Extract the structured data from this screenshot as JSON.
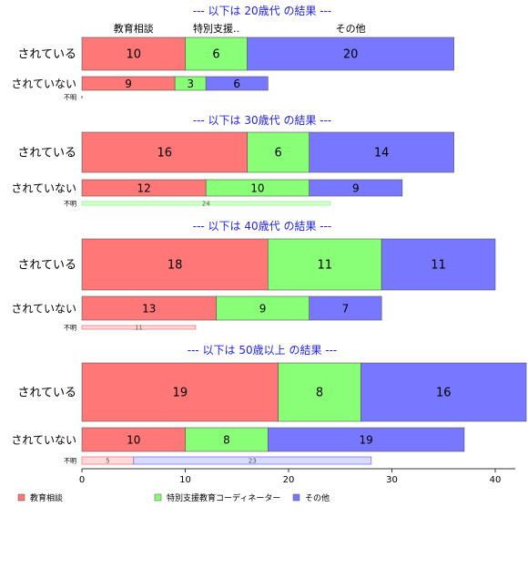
{
  "chart_data": {
    "type": "bar",
    "orientation": "horizontal",
    "stacked": true,
    "xlim": [
      0,
      42
    ],
    "xticks": [
      0,
      10,
      20,
      30,
      40
    ],
    "categories": [
      "されている",
      "されていない",
      "不明"
    ],
    "legend": {
      "placement": "bottom-left",
      "labels": [
        "教育相談",
        "特別支援教育コーディネーター",
        "その他"
      ]
    },
    "colors": [
      "#ff7777",
      "#88ff77",
      "#7777ff"
    ],
    "panels": [
      {
        "title": "--- 以下は 20歳代 の結果 ---",
        "header_labels": [
          "教育相談",
          "特別支援..",
          "その他"
        ],
        "rows": [
          {
            "category": "されている",
            "values": [
              10,
              6,
              20
            ],
            "labels": [
              "10",
              "6",
              "20"
            ]
          },
          {
            "category": "されていない",
            "values": [
              9,
              3,
              6
            ],
            "labels": [
              "9",
              "3",
              "6"
            ]
          },
          {
            "category": "不明",
            "values": [
              0,
              0,
              0
            ],
            "labels": [
              "",
              "",
              ""
            ]
          }
        ]
      },
      {
        "title": "--- 以下は 30歳代 の結果 ---",
        "rows": [
          {
            "category": "されている",
            "values": [
              16,
              6,
              14
            ],
            "labels": [
              "16",
              "6",
              "14"
            ]
          },
          {
            "category": "されていない",
            "values": [
              12,
              10,
              9
            ],
            "labels": [
              "12",
              "10",
              "9"
            ]
          },
          {
            "category": "不明",
            "values": [
              0,
              24,
              0
            ],
            "labels": [
              "",
              "24",
              ""
            ]
          }
        ]
      },
      {
        "title": "--- 以下は 40歳代 の結果 ---",
        "rows": [
          {
            "category": "されている",
            "values": [
              18,
              11,
              11
            ],
            "labels": [
              "18",
              "11",
              "11"
            ]
          },
          {
            "category": "されていない",
            "values": [
              13,
              9,
              7
            ],
            "labels": [
              "13",
              "9",
              "7"
            ]
          },
          {
            "category": "不明",
            "values": [
              11,
              0,
              0
            ],
            "labels": [
              "11",
              "",
              ""
            ]
          }
        ]
      },
      {
        "title": "--- 以下は 50歳以上 の結果 ---",
        "rows": [
          {
            "category": "されている",
            "values": [
              19,
              8,
              16
            ],
            "labels": [
              "19",
              "8",
              "16"
            ]
          },
          {
            "category": "されていない",
            "values": [
              10,
              8,
              19
            ],
            "labels": [
              "10",
              "8",
              "19"
            ]
          },
          {
            "category": "不明",
            "values": [
              5,
              0,
              23
            ],
            "labels": [
              "5",
              "",
              "23"
            ]
          }
        ]
      }
    ]
  }
}
